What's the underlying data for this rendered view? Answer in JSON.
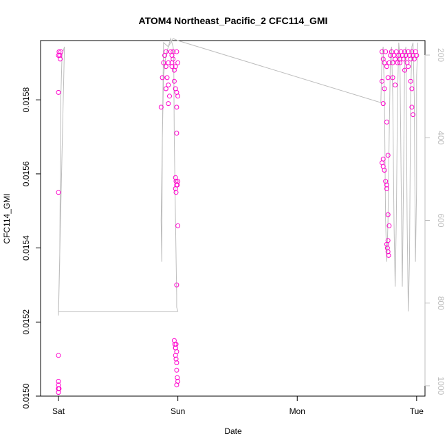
{
  "chart_data": {
    "type": "scatter",
    "title": "ATOM4 Northeast_Pacific_2 CFC114_GMI",
    "xlabel": "Date",
    "ylabel": "CFC114_GMI",
    "x_ticks": [
      {
        "pos": 0,
        "label": "Sat"
      },
      {
        "pos": 1,
        "label": "Sun"
      },
      {
        "pos": 2,
        "label": "Mon"
      },
      {
        "pos": 3,
        "label": "Tue"
      }
    ],
    "y_ticks": [
      "0.0150",
      "0.0152",
      "0.0154",
      "0.0156",
      "0.0158"
    ],
    "y_tick_values": [
      0.015,
      0.0152,
      0.0154,
      0.0156,
      0.0158
    ],
    "ylim": [
      0.015,
      0.01596
    ],
    "xlim": [
      -0.15,
      3.07
    ],
    "right_axis": {
      "ticks": [
        "200",
        "400",
        "600",
        "800",
        "1000"
      ],
      "tick_values": [
        200,
        400,
        600,
        800,
        1000
      ],
      "lim_top_to_bottom": [
        165,
        1025
      ],
      "color": "#bdbdbd"
    },
    "series": [
      {
        "marker": "open-circle",
        "color": "#ff00cc",
        "points": [
          [
            0.0,
            0.01592
          ],
          [
            0.005,
            0.01593
          ],
          [
            0.01,
            0.01592
          ],
          [
            0.015,
            0.01591
          ],
          [
            0.02,
            0.01593
          ],
          [
            0.0,
            0.01582
          ],
          [
            0.0,
            0.01555
          ],
          [
            0.0,
            0.01511
          ],
          [
            0.0,
            0.01504
          ],
          [
            0.0,
            0.01502
          ],
          [
            0.0,
            0.01503
          ],
          [
            0.0,
            0.01502
          ],
          [
            0.0,
            0.01501
          ],
          [
            0.005,
            0.01502
          ],
          [
            0.88,
            0.0159
          ],
          [
            0.89,
            0.01592
          ],
          [
            0.9,
            0.01593
          ],
          [
            0.9,
            0.01589
          ],
          [
            0.91,
            0.01586
          ],
          [
            0.92,
            0.0159
          ],
          [
            0.92,
            0.01584
          ],
          [
            0.93,
            0.01581
          ],
          [
            0.94,
            0.01593
          ],
          [
            0.95,
            0.01592
          ],
          [
            0.95,
            0.01589
          ],
          [
            0.96,
            0.01593
          ],
          [
            0.96,
            0.01591
          ],
          [
            0.97,
            0.01588
          ],
          [
            0.98,
            0.01589
          ],
          [
            0.99,
            0.01593
          ],
          [
            1.0,
            0.0159
          ],
          [
            0.97,
            0.01585
          ],
          [
            0.98,
            0.01583
          ],
          [
            1.0,
            0.01581
          ],
          [
            0.86,
            0.01578
          ],
          [
            0.87,
            0.01586
          ],
          [
            0.9,
            0.01583
          ],
          [
            0.92,
            0.01579
          ],
          [
            0.95,
            0.0159
          ],
          [
            0.99,
            0.01578
          ],
          [
            0.99,
            0.01582
          ],
          [
            0.99,
            0.01571
          ],
          [
            0.98,
            0.01559
          ],
          [
            0.985,
            0.01558
          ],
          [
            0.99,
            0.01557
          ],
          [
            0.995,
            0.01557
          ],
          [
            1.0,
            0.01558
          ],
          [
            0.98,
            0.01556
          ],
          [
            0.985,
            0.01555
          ],
          [
            1.0,
            0.01546
          ],
          [
            0.99,
            0.0153
          ],
          [
            0.97,
            0.01515
          ],
          [
            0.975,
            0.01514
          ],
          [
            0.98,
            0.01513
          ],
          [
            0.985,
            0.01514
          ],
          [
            0.99,
            0.01512
          ],
          [
            0.98,
            0.01511
          ],
          [
            0.985,
            0.0151
          ],
          [
            0.99,
            0.01509
          ],
          [
            0.99,
            0.01507
          ],
          [
            0.995,
            0.01505
          ],
          [
            1.0,
            0.01504
          ],
          [
            0.99,
            0.01503
          ],
          [
            0.98,
            0.01513
          ],
          [
            2.71,
            0.01593
          ],
          [
            2.72,
            0.01591
          ],
          [
            2.73,
            0.0159
          ],
          [
            2.74,
            0.01593
          ],
          [
            2.75,
            0.01589
          ],
          [
            2.76,
            0.01586
          ],
          [
            2.77,
            0.0159
          ],
          [
            2.78,
            0.01592
          ],
          [
            2.79,
            0.01593
          ],
          [
            2.8,
            0.0159
          ],
          [
            2.81,
            0.01592
          ],
          [
            2.82,
            0.01591
          ],
          [
            2.83,
            0.01593
          ],
          [
            2.84,
            0.0159
          ],
          [
            2.85,
            0.01592
          ],
          [
            2.86,
            0.01591
          ],
          [
            2.87,
            0.01593
          ],
          [
            2.88,
            0.01592
          ],
          [
            2.89,
            0.01591
          ],
          [
            2.9,
            0.01593
          ],
          [
            2.91,
            0.01592
          ],
          [
            2.92,
            0.0159
          ],
          [
            2.93,
            0.01593
          ],
          [
            2.94,
            0.01592
          ],
          [
            2.95,
            0.01591
          ],
          [
            2.96,
            0.01593
          ],
          [
            2.97,
            0.01592
          ],
          [
            2.98,
            0.01591
          ],
          [
            2.99,
            0.01593
          ],
          [
            3.0,
            0.01592
          ],
          [
            2.71,
            0.01585
          ],
          [
            2.72,
            0.01579
          ],
          [
            2.73,
            0.01583
          ],
          [
            2.75,
            0.01574
          ],
          [
            2.72,
            0.01564
          ],
          [
            2.71,
            0.01563
          ],
          [
            2.72,
            0.01562
          ],
          [
            2.73,
            0.01561
          ],
          [
            2.74,
            0.01558
          ],
          [
            2.75,
            0.01557
          ],
          [
            2.76,
            0.01565
          ],
          [
            2.75,
            0.01556
          ],
          [
            2.76,
            0.01549
          ],
          [
            2.77,
            0.01546
          ],
          [
            2.76,
            0.01542
          ],
          [
            2.75,
            0.01541
          ],
          [
            2.755,
            0.0154
          ],
          [
            2.76,
            0.01539
          ],
          [
            2.765,
            0.01538
          ],
          [
            2.86,
            0.0159
          ],
          [
            2.9,
            0.01588
          ],
          [
            2.93,
            0.01589
          ],
          [
            2.95,
            0.01585
          ],
          [
            2.96,
            0.01583
          ],
          [
            2.96,
            0.01578
          ],
          [
            2.97,
            0.01576
          ],
          [
            2.8,
            0.01586
          ],
          [
            2.82,
            0.01584
          ]
        ]
      }
    ],
    "line_series": [
      {
        "color": "#bdbdbd",
        "axis": "right",
        "points": [
          [
            0.0,
            820
          ],
          [
            0.0,
            830
          ],
          [
            0.01,
            700
          ],
          [
            0.02,
            300
          ],
          [
            0.03,
            200
          ],
          [
            0.05,
            180
          ],
          [
            0.0,
            820
          ],
          [
            1.0,
            820
          ],
          [
            0.99,
            810
          ],
          [
            0.99,
            780
          ],
          [
            0.98,
            600
          ],
          [
            0.97,
            400
          ],
          [
            0.965,
            200
          ],
          [
            0.96,
            180
          ],
          [
            0.94,
            160
          ],
          [
            0.9,
            200
          ],
          [
            0.88,
            250
          ],
          [
            0.87,
            400
          ],
          [
            0.86,
            600
          ],
          [
            0.865,
            700
          ],
          [
            0.87,
            400
          ],
          [
            0.88,
            170
          ],
          [
            0.92,
            180
          ],
          [
            0.96,
            160
          ],
          [
            1.0,
            165
          ],
          [
            2.7,
            315
          ],
          [
            2.71,
            200
          ],
          [
            2.72,
            180
          ],
          [
            2.73,
            300
          ],
          [
            2.74,
            600
          ],
          [
            2.75,
            700
          ],
          [
            2.76,
            600
          ],
          [
            2.77,
            400
          ],
          [
            2.78,
            200
          ],
          [
            2.79,
            180
          ],
          [
            2.8,
            300
          ],
          [
            2.81,
            600
          ],
          [
            2.82,
            760
          ],
          [
            2.83,
            600
          ],
          [
            2.84,
            300
          ],
          [
            2.85,
            170
          ],
          [
            2.86,
            200
          ],
          [
            2.87,
            500
          ],
          [
            2.88,
            760
          ],
          [
            2.89,
            500
          ],
          [
            2.9,
            200
          ],
          [
            2.91,
            180
          ],
          [
            2.92,
            600
          ],
          [
            2.93,
            820
          ],
          [
            2.94,
            700
          ],
          [
            2.95,
            300
          ],
          [
            2.96,
            180
          ],
          [
            2.97,
            170
          ],
          [
            2.98,
            300
          ],
          [
            2.99,
            700
          ],
          [
            3.0,
            520
          ],
          [
            3.0,
            250
          ],
          [
            3.01,
            170
          ]
        ]
      }
    ],
    "grid": false,
    "legend": "none"
  }
}
